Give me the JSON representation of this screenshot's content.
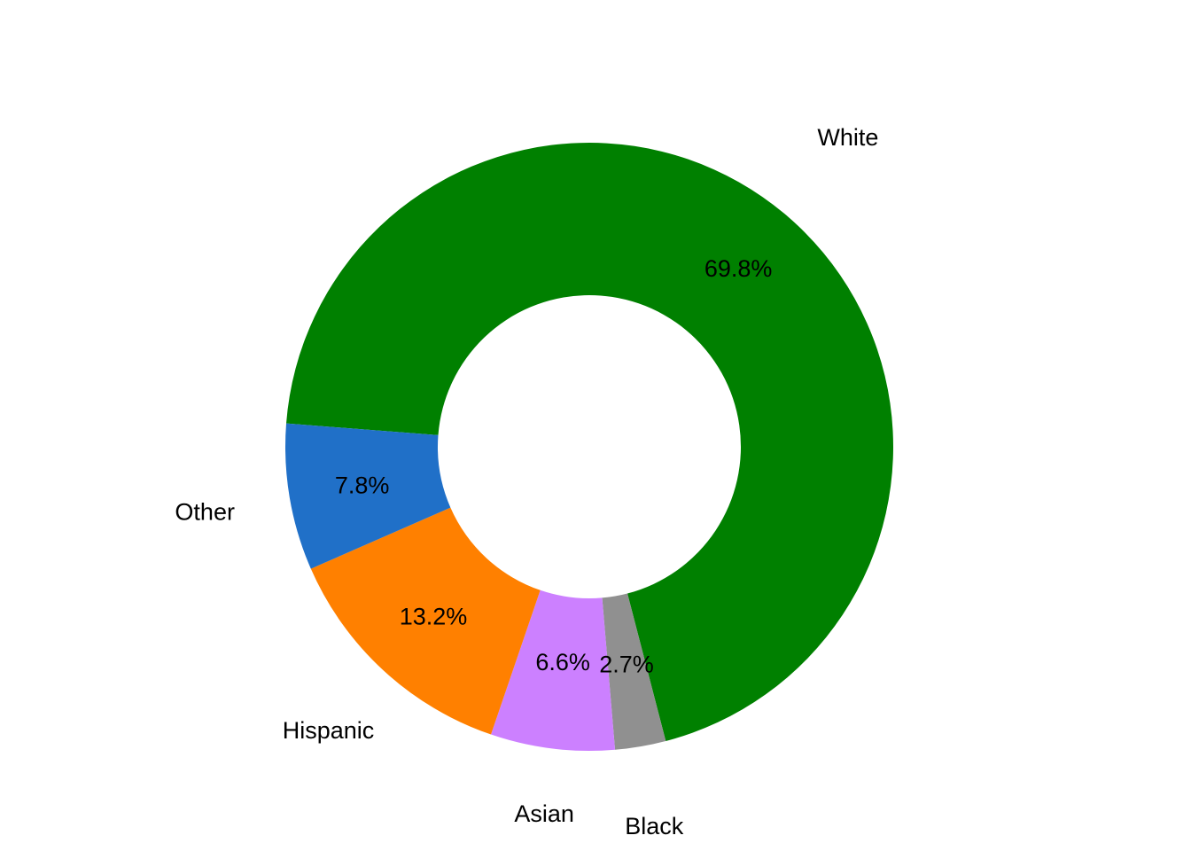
{
  "chart_data": {
    "type": "pie",
    "donut": true,
    "legend": "none",
    "slices": [
      {
        "category": "White",
        "percent_label": "69.8%",
        "value": 69.8,
        "color": "#008000"
      },
      {
        "category": "Black",
        "percent_label": "2.7%",
        "value": 2.7,
        "color": "#909090"
      },
      {
        "category": "Asian",
        "percent_label": "6.6%",
        "value": 6.6,
        "color": "#CC80FF"
      },
      {
        "category": "Hispanic",
        "percent_label": "13.2%",
        "value": 13.2,
        "color": "#FF8000"
      },
      {
        "category": "Other",
        "percent_label": "7.8%",
        "value": 7.8,
        "color": "#2070C8"
      }
    ]
  }
}
